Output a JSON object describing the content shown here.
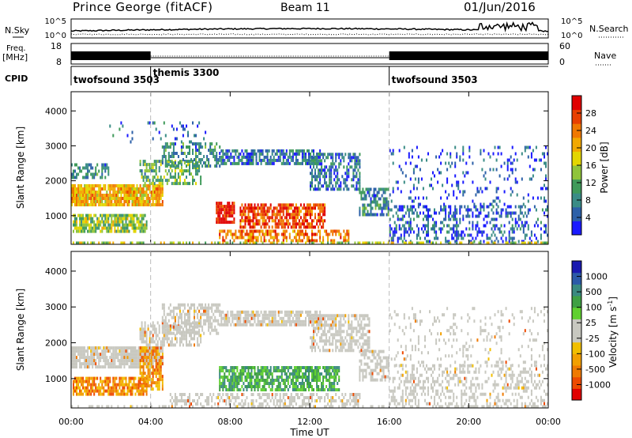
{
  "header": {
    "title": "Prince George (fitACF)",
    "beam": "Beam 11",
    "date": "01/Jun/2016"
  },
  "top_panels": {
    "nsky_label": "N.Sky",
    "nsky_ticks": [
      "10^5",
      "10^0"
    ],
    "nsearch_label": "N.Search",
    "nsearch_ticks": [
      "10^5",
      "10^0"
    ],
    "freq_label": "Freq.",
    "freq_unit": "[MHz]",
    "freq_ticks": [
      "18",
      "8"
    ],
    "nave_label": "Nave",
    "nave_ticks": [
      "60",
      "0"
    ],
    "cpid_label": "CPID",
    "cpid_segments": [
      {
        "name": "twofsound 3503",
        "start_h": 0,
        "end_h": 4
      },
      {
        "name": "themis 3300",
        "start_h": 4,
        "end_h": 16
      },
      {
        "name": "twofsound 3503",
        "start_h": 16,
        "end_h": 24
      }
    ]
  },
  "chart_data": [
    {
      "type": "heatmap",
      "quantity": "Power",
      "xlabel": "Time UT",
      "ylabel": "Slant Range [km]",
      "xlim_hours": [
        0,
        24
      ],
      "x_tick_labels": [
        "00:00",
        "04:00",
        "08:00",
        "12:00",
        "16:00",
        "20:00",
        "00:00"
      ],
      "ylim": [
        180,
        4550
      ],
      "y_ticks": [
        1000,
        2000,
        3000,
        4000
      ],
      "colorbar": {
        "label": "Power [dB]",
        "ticks": [
          "28",
          "24",
          "20",
          "16",
          "12",
          "8",
          "4"
        ],
        "colors": [
          "#1a1aff",
          "#2c60a8",
          "#3a8c86",
          "#3f9a5a",
          "#8fc43a",
          "#e3d600",
          "#f2a800",
          "#f07800",
          "#e84000",
          "#e00000"
        ]
      },
      "regions": [
        {
          "t0": 0.0,
          "t1": 4.6,
          "r0": 1300,
          "r1": 1900,
          "level": 0.65,
          "density": 0.9
        },
        {
          "t0": 0.1,
          "t1": 3.8,
          "r0": 550,
          "r1": 1050,
          "level": 0.45,
          "density": 0.8
        },
        {
          "t0": 0.0,
          "t1": 2.0,
          "r0": 2100,
          "r1": 2500,
          "level": 0.25,
          "density": 0.45
        },
        {
          "t0": 3.5,
          "t1": 6.5,
          "r0": 1900,
          "r1": 2600,
          "level": 0.35,
          "density": 0.55
        },
        {
          "t0": 4.6,
          "t1": 7.5,
          "r0": 2400,
          "r1": 3100,
          "level": 0.25,
          "density": 0.5
        },
        {
          "t0": 7.5,
          "t1": 12.5,
          "r0": 2500,
          "r1": 2900,
          "level": 0.2,
          "density": 0.7
        },
        {
          "t0": 12.0,
          "t1": 14.5,
          "r0": 1800,
          "r1": 2800,
          "level": 0.2,
          "density": 0.55
        },
        {
          "t0": 14.5,
          "t1": 16.0,
          "r0": 1000,
          "r1": 1800,
          "level": 0.25,
          "density": 0.6
        },
        {
          "t0": 7.3,
          "t1": 8.2,
          "r0": 800,
          "r1": 1400,
          "level": 0.95,
          "density": 0.9
        },
        {
          "t0": 8.5,
          "t1": 12.8,
          "r0": 650,
          "r1": 1350,
          "level": 0.85,
          "density": 0.75
        },
        {
          "t0": 7.5,
          "t1": 14.0,
          "r0": 250,
          "r1": 600,
          "level": 0.75,
          "density": 0.55
        },
        {
          "t0": 16.0,
          "t1": 24.0,
          "r0": 300,
          "r1": 1300,
          "level": 0.15,
          "density": 0.35
        },
        {
          "t0": 16.0,
          "t1": 24.0,
          "r0": 1300,
          "r1": 3000,
          "level": 0.12,
          "density": 0.12
        },
        {
          "t0": 1.8,
          "t1": 7.0,
          "r0": 3100,
          "r1": 3700,
          "level": 0.15,
          "density": 0.12
        },
        {
          "t0": 0.0,
          "t1": 24.0,
          "r0": 180,
          "r1": 260,
          "level": 0.5,
          "density": 0.5
        }
      ]
    },
    {
      "type": "heatmap",
      "quantity": "Velocity",
      "xlabel": "Time UT",
      "ylabel": "Slant Range [km]",
      "xlim_hours": [
        0,
        24
      ],
      "x_tick_labels": [
        "00:00",
        "04:00",
        "08:00",
        "12:00",
        "16:00",
        "20:00",
        "00:00"
      ],
      "ylim": [
        180,
        4550
      ],
      "y_ticks": [
        1000,
        2000,
        3000,
        4000
      ],
      "colorbar": {
        "label": "Velocity [m s^-1]",
        "ticks": [
          "1000",
          "500",
          "100",
          "25",
          "-25",
          "-100",
          "-500",
          "-1000"
        ],
        "colors": [
          "#e00000",
          "#ee4a00",
          "#f07a00",
          "#f2a000",
          "#f2bf00",
          "#c8c8c0",
          "#c8c8c0",
          "#60d030",
          "#3fa044",
          "#3a8a80",
          "#2c5aa8",
          "#1a1ab0"
        ]
      },
      "ground_color": "#c8c8c0",
      "regions": [
        {
          "t0": 0.0,
          "t1": 4.6,
          "r0": 1300,
          "r1": 1900,
          "kind": "gray",
          "density": 0.85
        },
        {
          "t0": 0.1,
          "t1": 3.8,
          "r0": 550,
          "r1": 1050,
          "kind": "neg",
          "density": 0.75
        },
        {
          "t0": 3.5,
          "t1": 4.6,
          "r0": 700,
          "r1": 1900,
          "kind": "neg",
          "density": 0.7
        },
        {
          "t0": 3.5,
          "t1": 6.5,
          "r0": 1900,
          "r1": 2600,
          "kind": "gray",
          "density": 0.6
        },
        {
          "t0": 4.6,
          "t1": 7.5,
          "r0": 2300,
          "r1": 3100,
          "kind": "gray",
          "density": 0.55
        },
        {
          "t0": 7.5,
          "t1": 12.5,
          "r0": 2500,
          "r1": 2900,
          "kind": "gray",
          "density": 0.75
        },
        {
          "t0": 12.0,
          "t1": 15.0,
          "r0": 1800,
          "r1": 2800,
          "kind": "gray",
          "density": 0.6
        },
        {
          "t0": 14.5,
          "t1": 16.0,
          "r0": 1000,
          "r1": 1800,
          "kind": "gray",
          "density": 0.6
        },
        {
          "t0": 7.5,
          "t1": 13.5,
          "r0": 700,
          "r1": 1350,
          "kind": "pos",
          "density": 0.75
        },
        {
          "t0": 5.0,
          "t1": 14.5,
          "r0": 280,
          "r1": 600,
          "kind": "gray",
          "density": 0.45
        },
        {
          "t0": 16.0,
          "t1": 24.0,
          "r0": 300,
          "r1": 1400,
          "kind": "gray",
          "density": 0.35
        },
        {
          "t0": 16.0,
          "t1": 24.0,
          "r0": 1400,
          "r1": 3000,
          "kind": "gray",
          "density": 0.12
        },
        {
          "t0": 0.0,
          "t1": 24.0,
          "r0": 180,
          "r1": 260,
          "kind": "gray",
          "density": 0.45
        }
      ]
    }
  ]
}
